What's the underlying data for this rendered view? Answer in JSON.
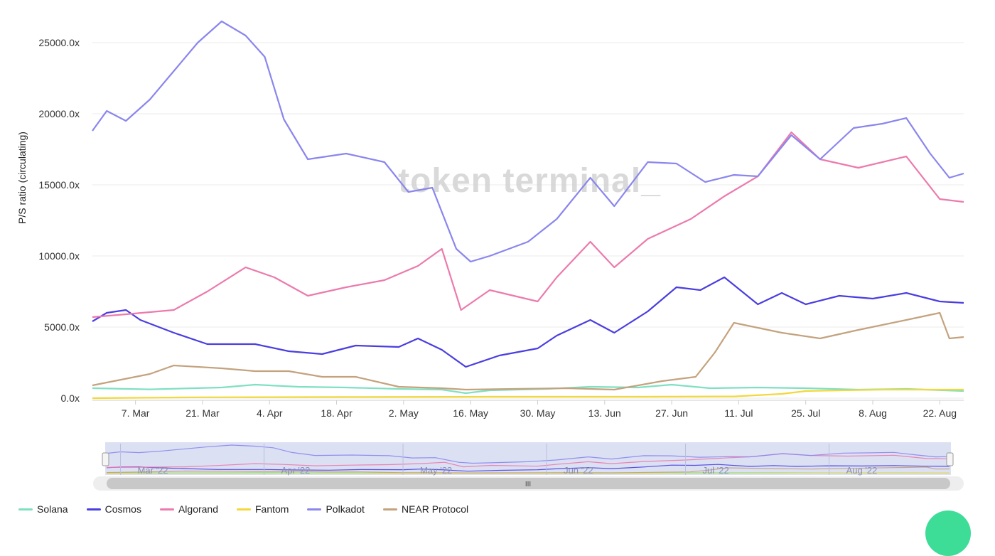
{
  "chart_data": {
    "type": "line",
    "ylabel": "P/S ratio (circulating)",
    "watermark": "token terminal_",
    "y_ticks": [
      "0.0x",
      "5000.0x",
      "10000.0x",
      "15000.0x",
      "20000.0x",
      "25000.0x"
    ],
    "ylim": [
      0,
      26500
    ],
    "x_ticks": [
      "7. Mar",
      "21. Mar",
      "4. Apr",
      "18. Apr",
      "2. May",
      "16. May",
      "30. May",
      "13. Jun",
      "27. Jun",
      "11. Jul",
      "25. Jul",
      "8. Aug",
      "22. Aug"
    ],
    "x_range": [
      "2022-02-26",
      "2022-08-27"
    ],
    "navigator_labels": [
      "Mar '22",
      "Apr '22",
      "May '22",
      "Jun '22",
      "Jul '22",
      "Aug '22"
    ],
    "navigator_handle_label": "III",
    "grid": true,
    "legend_position": "bottom",
    "series": [
      {
        "name": "Solana",
        "color": "#7fe0c1",
        "points": [
          [
            "2022-02-26",
            700
          ],
          [
            "2022-03-10",
            620
          ],
          [
            "2022-03-25",
            750
          ],
          [
            "2022-04-01",
            950
          ],
          [
            "2022-04-10",
            800
          ],
          [
            "2022-04-20",
            750
          ],
          [
            "2022-05-01",
            650
          ],
          [
            "2022-05-10",
            600
          ],
          [
            "2022-05-15",
            350
          ],
          [
            "2022-05-20",
            550
          ],
          [
            "2022-06-01",
            650
          ],
          [
            "2022-06-10",
            800
          ],
          [
            "2022-06-20",
            750
          ],
          [
            "2022-06-27",
            950
          ],
          [
            "2022-07-05",
            700
          ],
          [
            "2022-07-15",
            750
          ],
          [
            "2022-07-25",
            700
          ],
          [
            "2022-08-05",
            600
          ],
          [
            "2022-08-15",
            650
          ],
          [
            "2022-08-27",
            500
          ]
        ]
      },
      {
        "name": "Cosmos",
        "color": "#4a3ee0",
        "points": [
          [
            "2022-02-26",
            5400
          ],
          [
            "2022-03-01",
            6000
          ],
          [
            "2022-03-05",
            6200
          ],
          [
            "2022-03-08",
            5500
          ],
          [
            "2022-03-15",
            4600
          ],
          [
            "2022-03-22",
            3800
          ],
          [
            "2022-04-01",
            3800
          ],
          [
            "2022-04-08",
            3300
          ],
          [
            "2022-04-15",
            3100
          ],
          [
            "2022-04-22",
            3700
          ],
          [
            "2022-05-01",
            3600
          ],
          [
            "2022-05-05",
            4200
          ],
          [
            "2022-05-10",
            3400
          ],
          [
            "2022-05-15",
            2200
          ],
          [
            "2022-05-22",
            3000
          ],
          [
            "2022-05-30",
            3500
          ],
          [
            "2022-06-03",
            4400
          ],
          [
            "2022-06-10",
            5500
          ],
          [
            "2022-06-15",
            4600
          ],
          [
            "2022-06-22",
            6100
          ],
          [
            "2022-06-28",
            7800
          ],
          [
            "2022-07-03",
            7600
          ],
          [
            "2022-07-08",
            8500
          ],
          [
            "2022-07-15",
            6600
          ],
          [
            "2022-07-20",
            7400
          ],
          [
            "2022-07-25",
            6600
          ],
          [
            "2022-08-01",
            7200
          ],
          [
            "2022-08-08",
            7000
          ],
          [
            "2022-08-15",
            7400
          ],
          [
            "2022-08-22",
            6800
          ],
          [
            "2022-08-27",
            6700
          ]
        ]
      },
      {
        "name": "Algorand",
        "color": "#ec7aad",
        "points": [
          [
            "2022-02-26",
            5700
          ],
          [
            "2022-03-05",
            5900
          ],
          [
            "2022-03-15",
            6200
          ],
          [
            "2022-03-22",
            7500
          ],
          [
            "2022-03-30",
            9200
          ],
          [
            "2022-04-05",
            8500
          ],
          [
            "2022-04-12",
            7200
          ],
          [
            "2022-04-20",
            7800
          ],
          [
            "2022-04-28",
            8300
          ],
          [
            "2022-05-05",
            9300
          ],
          [
            "2022-05-10",
            10500
          ],
          [
            "2022-05-14",
            6200
          ],
          [
            "2022-05-20",
            7600
          ],
          [
            "2022-05-30",
            6800
          ],
          [
            "2022-06-03",
            8500
          ],
          [
            "2022-06-10",
            11000
          ],
          [
            "2022-06-15",
            9200
          ],
          [
            "2022-06-22",
            11200
          ],
          [
            "2022-07-01",
            12600
          ],
          [
            "2022-07-08",
            14200
          ],
          [
            "2022-07-15",
            15600
          ],
          [
            "2022-07-22",
            18700
          ],
          [
            "2022-07-28",
            16800
          ],
          [
            "2022-08-05",
            16200
          ],
          [
            "2022-08-15",
            17000
          ],
          [
            "2022-08-22",
            14000
          ],
          [
            "2022-08-27",
            13800
          ]
        ]
      },
      {
        "name": "Fantom",
        "color": "#f2d83b",
        "points": [
          [
            "2022-02-26",
            0
          ],
          [
            "2022-03-20",
            60
          ],
          [
            "2022-04-20",
            80
          ],
          [
            "2022-05-20",
            100
          ],
          [
            "2022-06-20",
            100
          ],
          [
            "2022-07-10",
            120
          ],
          [
            "2022-07-20",
            300
          ],
          [
            "2022-07-25",
            500
          ],
          [
            "2022-08-10",
            600
          ],
          [
            "2022-08-27",
            600
          ]
        ]
      },
      {
        "name": "Polkadot",
        "color": "#8a86ee",
        "points": [
          [
            "2022-02-26",
            18800
          ],
          [
            "2022-03-01",
            20200
          ],
          [
            "2022-03-05",
            19500
          ],
          [
            "2022-03-10",
            21000
          ],
          [
            "2022-03-15",
            23000
          ],
          [
            "2022-03-20",
            25000
          ],
          [
            "2022-03-25",
            26500
          ],
          [
            "2022-03-30",
            25500
          ],
          [
            "2022-04-03",
            24000
          ],
          [
            "2022-04-07",
            19600
          ],
          [
            "2022-04-12",
            16800
          ],
          [
            "2022-04-20",
            17200
          ],
          [
            "2022-04-28",
            16600
          ],
          [
            "2022-05-03",
            14500
          ],
          [
            "2022-05-08",
            14800
          ],
          [
            "2022-05-13",
            10500
          ],
          [
            "2022-05-16",
            9600
          ],
          [
            "2022-05-20",
            10000
          ],
          [
            "2022-05-28",
            11000
          ],
          [
            "2022-06-03",
            12600
          ],
          [
            "2022-06-10",
            15500
          ],
          [
            "2022-06-15",
            13500
          ],
          [
            "2022-06-22",
            16600
          ],
          [
            "2022-06-28",
            16500
          ],
          [
            "2022-07-04",
            15200
          ],
          [
            "2022-07-10",
            15700
          ],
          [
            "2022-07-15",
            15600
          ],
          [
            "2022-07-22",
            18500
          ],
          [
            "2022-07-28",
            16800
          ],
          [
            "2022-08-04",
            19000
          ],
          [
            "2022-08-10",
            19300
          ],
          [
            "2022-08-15",
            19700
          ],
          [
            "2022-08-20",
            17200
          ],
          [
            "2022-08-24",
            15500
          ],
          [
            "2022-08-27",
            15800
          ]
        ]
      },
      {
        "name": "NEAR Protocol",
        "color": "#c4a27e",
        "points": [
          [
            "2022-02-26",
            900
          ],
          [
            "2022-03-10",
            1700
          ],
          [
            "2022-03-15",
            2300
          ],
          [
            "2022-03-25",
            2100
          ],
          [
            "2022-04-01",
            1900
          ],
          [
            "2022-04-08",
            1900
          ],
          [
            "2022-04-15",
            1500
          ],
          [
            "2022-04-22",
            1500
          ],
          [
            "2022-05-01",
            800
          ],
          [
            "2022-05-10",
            700
          ],
          [
            "2022-05-15",
            600
          ],
          [
            "2022-05-25",
            650
          ],
          [
            "2022-06-05",
            700
          ],
          [
            "2022-06-15",
            600
          ],
          [
            "2022-06-25",
            1200
          ],
          [
            "2022-07-02",
            1500
          ],
          [
            "2022-07-06",
            3200
          ],
          [
            "2022-07-10",
            5300
          ],
          [
            "2022-07-20",
            4600
          ],
          [
            "2022-07-28",
            4200
          ],
          [
            "2022-08-05",
            4800
          ],
          [
            "2022-08-15",
            5500
          ],
          [
            "2022-08-22",
            6000
          ],
          [
            "2022-08-24",
            4200
          ],
          [
            "2022-08-27",
            4300
          ]
        ]
      }
    ]
  }
}
